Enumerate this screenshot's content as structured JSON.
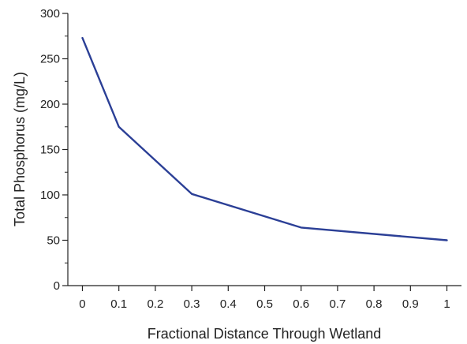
{
  "chart_data": {
    "type": "line",
    "xlabel": "Fractional Distance Through Wetland",
    "ylabel": "Total Phosphorus (mg/L)",
    "xlim": [
      -0.04,
      1.04
    ],
    "ylim": [
      0,
      300
    ],
    "x_ticks": [
      0,
      0.1,
      0.2,
      0.3,
      0.4,
      0.5,
      0.6,
      0.7,
      0.8,
      0.9,
      1
    ],
    "x_tick_labels": [
      "0",
      "0.1",
      "0.2",
      "0.3",
      "0.4",
      "0.5",
      "0.6",
      "0.7",
      "0.8",
      "0.9",
      "1"
    ],
    "y_ticks": [
      0,
      50,
      100,
      150,
      200,
      250,
      300
    ],
    "y_minor_ticks": [
      25,
      75,
      125,
      175,
      225,
      275
    ],
    "y_tick_labels": [
      "0",
      "50",
      "100",
      "150",
      "200",
      "250",
      "300"
    ],
    "grid": false,
    "legend": "none",
    "series": [
      {
        "color": "#2b3f96",
        "x": [
          0,
          0.1,
          0.3,
          0.6,
          1
        ],
        "y": [
          273,
          175,
          101,
          64,
          50
        ]
      }
    ]
  }
}
